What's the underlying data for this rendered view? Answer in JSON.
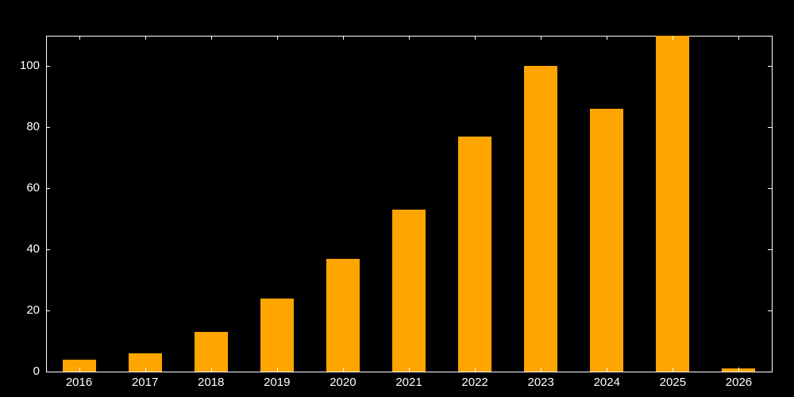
{
  "chart_data": {
    "type": "bar",
    "title": "",
    "xlabel": "",
    "ylabel": "",
    "categories": [
      "2016",
      "2017",
      "2018",
      "2019",
      "2020",
      "2021",
      "2022",
      "2023",
      "2024",
      "2025",
      "2026"
    ],
    "values": [
      4,
      6,
      13,
      24,
      37,
      53,
      77,
      100,
      86,
      110,
      1
    ],
    "ylim": [
      0,
      110
    ],
    "yticks": [
      0,
      20,
      40,
      60,
      80,
      100
    ],
    "grid": false,
    "legend": null,
    "bar_color": "#FFA500",
    "background": "#000000",
    "axis_color": "#FFFFFF",
    "notes": "2025 bar extends past top of plot area (clipped at ~110)"
  }
}
